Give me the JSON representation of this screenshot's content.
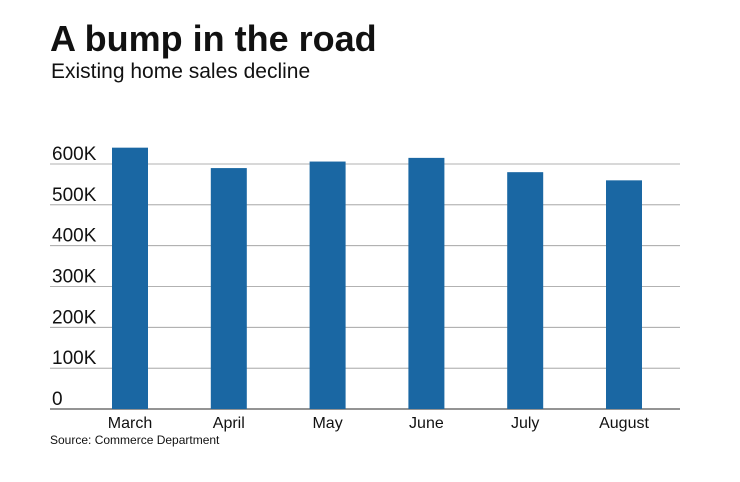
{
  "header": {
    "title": "A bump in the road",
    "subtitle": "Existing home sales decline"
  },
  "footer": {
    "source": "Source: Commerce Department"
  },
  "colors": {
    "bar": "#1a67a3",
    "grid": "#999999",
    "text": "#111111"
  },
  "chart_data": {
    "type": "bar",
    "title": "A bump in the road",
    "subtitle": "Existing home sales decline",
    "xlabel": "",
    "ylabel": "",
    "categories": [
      "March",
      "April",
      "May",
      "June",
      "July",
      "August"
    ],
    "values": [
      640000,
      590000,
      606000,
      615000,
      580000,
      560000
    ],
    "ylim": [
      0,
      600000
    ],
    "yticks": [
      0,
      100000,
      200000,
      300000,
      400000,
      500000,
      600000
    ],
    "ytick_labels": [
      "0",
      "100K",
      "200K",
      "300K",
      "400K",
      "500K",
      "600K"
    ],
    "grid": true,
    "legend": "none"
  }
}
